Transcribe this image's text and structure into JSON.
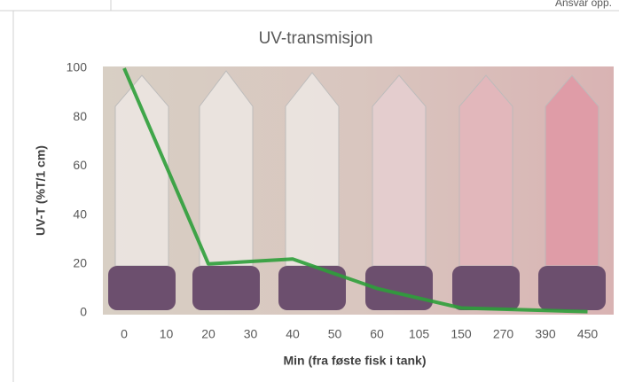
{
  "header_note": "Ansvar opp.",
  "chart_data": {
    "type": "line",
    "title": "UV-transmisjon",
    "x_label": "Min (fra føste fisk i tank)",
    "y_label": "UV-T (%T/1 cm)",
    "categories": [
      "0",
      "10",
      "20",
      "30",
      "40",
      "50",
      "60",
      "105",
      "150",
      "270",
      "390",
      "450"
    ],
    "values": [
      100,
      60,
      20,
      21,
      22,
      16,
      10,
      6,
      2,
      1.5,
      1,
      0.5
    ],
    "color": "#2e9e3a",
    "ylim": [
      0,
      100
    ],
    "yticks": [
      0,
      20,
      40,
      60,
      80,
      100
    ],
    "grid": false
  }
}
